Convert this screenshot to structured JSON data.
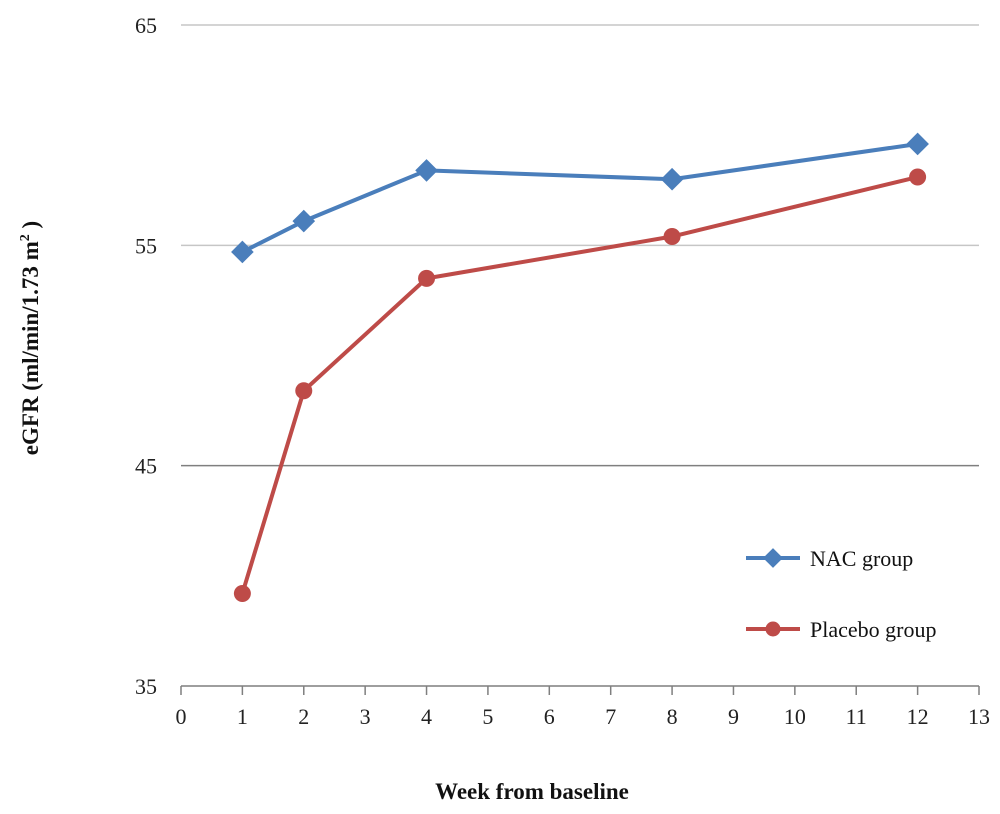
{
  "chart_data": {
    "type": "line",
    "title": "",
    "xlabel": "Week from baseline",
    "ylabel_main": "eGFR (ml/min/1.73 m",
    "ylabel_sup": "2",
    "ylabel_close": " )",
    "xlim": [
      0,
      13
    ],
    "ylim": [
      35,
      65
    ],
    "xticks": [
      "0",
      "1",
      "2",
      "3",
      "4",
      "5",
      "6",
      "7",
      "8",
      "9",
      "10",
      "11",
      "12",
      "13"
    ],
    "yticks": [
      "35",
      "45",
      "55",
      "65"
    ],
    "grid": "horizontal",
    "legend_position": "bottom-right",
    "series": [
      {
        "name": "NAC group",
        "color": "#4a7ebb",
        "marker": "diamond",
        "x": [
          1,
          2,
          4,
          8,
          12
        ],
        "y": [
          54.7,
          56.1,
          58.4,
          58.0,
          59.6
        ]
      },
      {
        "name": "Placebo group",
        "color": "#be4b48",
        "marker": "circle",
        "x": [
          1,
          2,
          4,
          8,
          12
        ],
        "y": [
          39.2,
          48.4,
          53.5,
          55.4,
          58.1
        ]
      }
    ]
  }
}
